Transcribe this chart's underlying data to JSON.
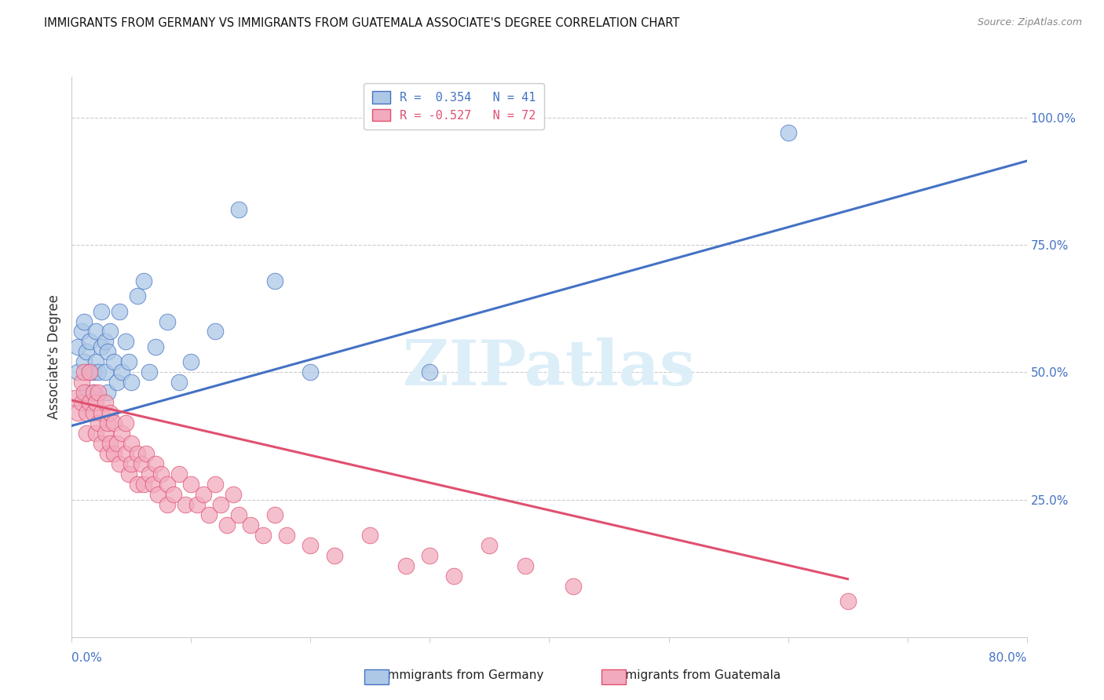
{
  "title": "IMMIGRANTS FROM GERMANY VS IMMIGRANTS FROM GUATEMALA ASSOCIATE'S DEGREE CORRELATION CHART",
  "source": "Source: ZipAtlas.com",
  "ylabel": "Associate's Degree",
  "ylabel_right_ticks": [
    "100.0%",
    "75.0%",
    "50.0%",
    "25.0%"
  ],
  "ylabel_right_vals": [
    1.0,
    0.75,
    0.5,
    0.25
  ],
  "legend_blue": "R =  0.354   N = 41",
  "legend_pink": "R = -0.527   N = 72",
  "legend_label_blue": "Immigrants from Germany",
  "legend_label_pink": "Immigrants from Guatemala",
  "blue_color": "#adc8e6",
  "pink_color": "#f2abbe",
  "blue_line_color": "#4472c4",
  "pink_line_color": "#e05070",
  "xlim": [
    0.0,
    0.8
  ],
  "ylim": [
    -0.02,
    1.08
  ],
  "blue_points_x": [
    0.005,
    0.005,
    0.008,
    0.01,
    0.01,
    0.012,
    0.012,
    0.015,
    0.015,
    0.018,
    0.018,
    0.02,
    0.02,
    0.022,
    0.025,
    0.025,
    0.028,
    0.028,
    0.03,
    0.03,
    0.032,
    0.035,
    0.038,
    0.04,
    0.042,
    0.045,
    0.048,
    0.05,
    0.055,
    0.06,
    0.065,
    0.07,
    0.08,
    0.09,
    0.1,
    0.12,
    0.14,
    0.17,
    0.2,
    0.3,
    0.6
  ],
  "blue_points_y": [
    0.5,
    0.55,
    0.58,
    0.52,
    0.6,
    0.46,
    0.54,
    0.5,
    0.56,
    0.5,
    0.46,
    0.52,
    0.58,
    0.5,
    0.55,
    0.62,
    0.5,
    0.56,
    0.46,
    0.54,
    0.58,
    0.52,
    0.48,
    0.62,
    0.5,
    0.56,
    0.52,
    0.48,
    0.65,
    0.68,
    0.5,
    0.55,
    0.6,
    0.48,
    0.52,
    0.58,
    0.82,
    0.68,
    0.5,
    0.5,
    0.97
  ],
  "pink_points_x": [
    0.003,
    0.005,
    0.008,
    0.008,
    0.01,
    0.01,
    0.012,
    0.012,
    0.015,
    0.015,
    0.018,
    0.018,
    0.02,
    0.02,
    0.022,
    0.022,
    0.025,
    0.025,
    0.028,
    0.028,
    0.03,
    0.03,
    0.032,
    0.032,
    0.035,
    0.035,
    0.038,
    0.04,
    0.042,
    0.045,
    0.045,
    0.048,
    0.05,
    0.05,
    0.055,
    0.055,
    0.058,
    0.06,
    0.062,
    0.065,
    0.068,
    0.07,
    0.072,
    0.075,
    0.08,
    0.08,
    0.085,
    0.09,
    0.095,
    0.1,
    0.105,
    0.11,
    0.115,
    0.12,
    0.125,
    0.13,
    0.135,
    0.14,
    0.15,
    0.16,
    0.17,
    0.18,
    0.2,
    0.22,
    0.25,
    0.28,
    0.3,
    0.32,
    0.35,
    0.38,
    0.42,
    0.65
  ],
  "pink_points_y": [
    0.45,
    0.42,
    0.48,
    0.44,
    0.5,
    0.46,
    0.42,
    0.38,
    0.44,
    0.5,
    0.42,
    0.46,
    0.38,
    0.44,
    0.4,
    0.46,
    0.36,
    0.42,
    0.38,
    0.44,
    0.34,
    0.4,
    0.36,
    0.42,
    0.34,
    0.4,
    0.36,
    0.32,
    0.38,
    0.34,
    0.4,
    0.3,
    0.36,
    0.32,
    0.34,
    0.28,
    0.32,
    0.28,
    0.34,
    0.3,
    0.28,
    0.32,
    0.26,
    0.3,
    0.28,
    0.24,
    0.26,
    0.3,
    0.24,
    0.28,
    0.24,
    0.26,
    0.22,
    0.28,
    0.24,
    0.2,
    0.26,
    0.22,
    0.2,
    0.18,
    0.22,
    0.18,
    0.16,
    0.14,
    0.18,
    0.12,
    0.14,
    0.1,
    0.16,
    0.12,
    0.08,
    0.05
  ]
}
